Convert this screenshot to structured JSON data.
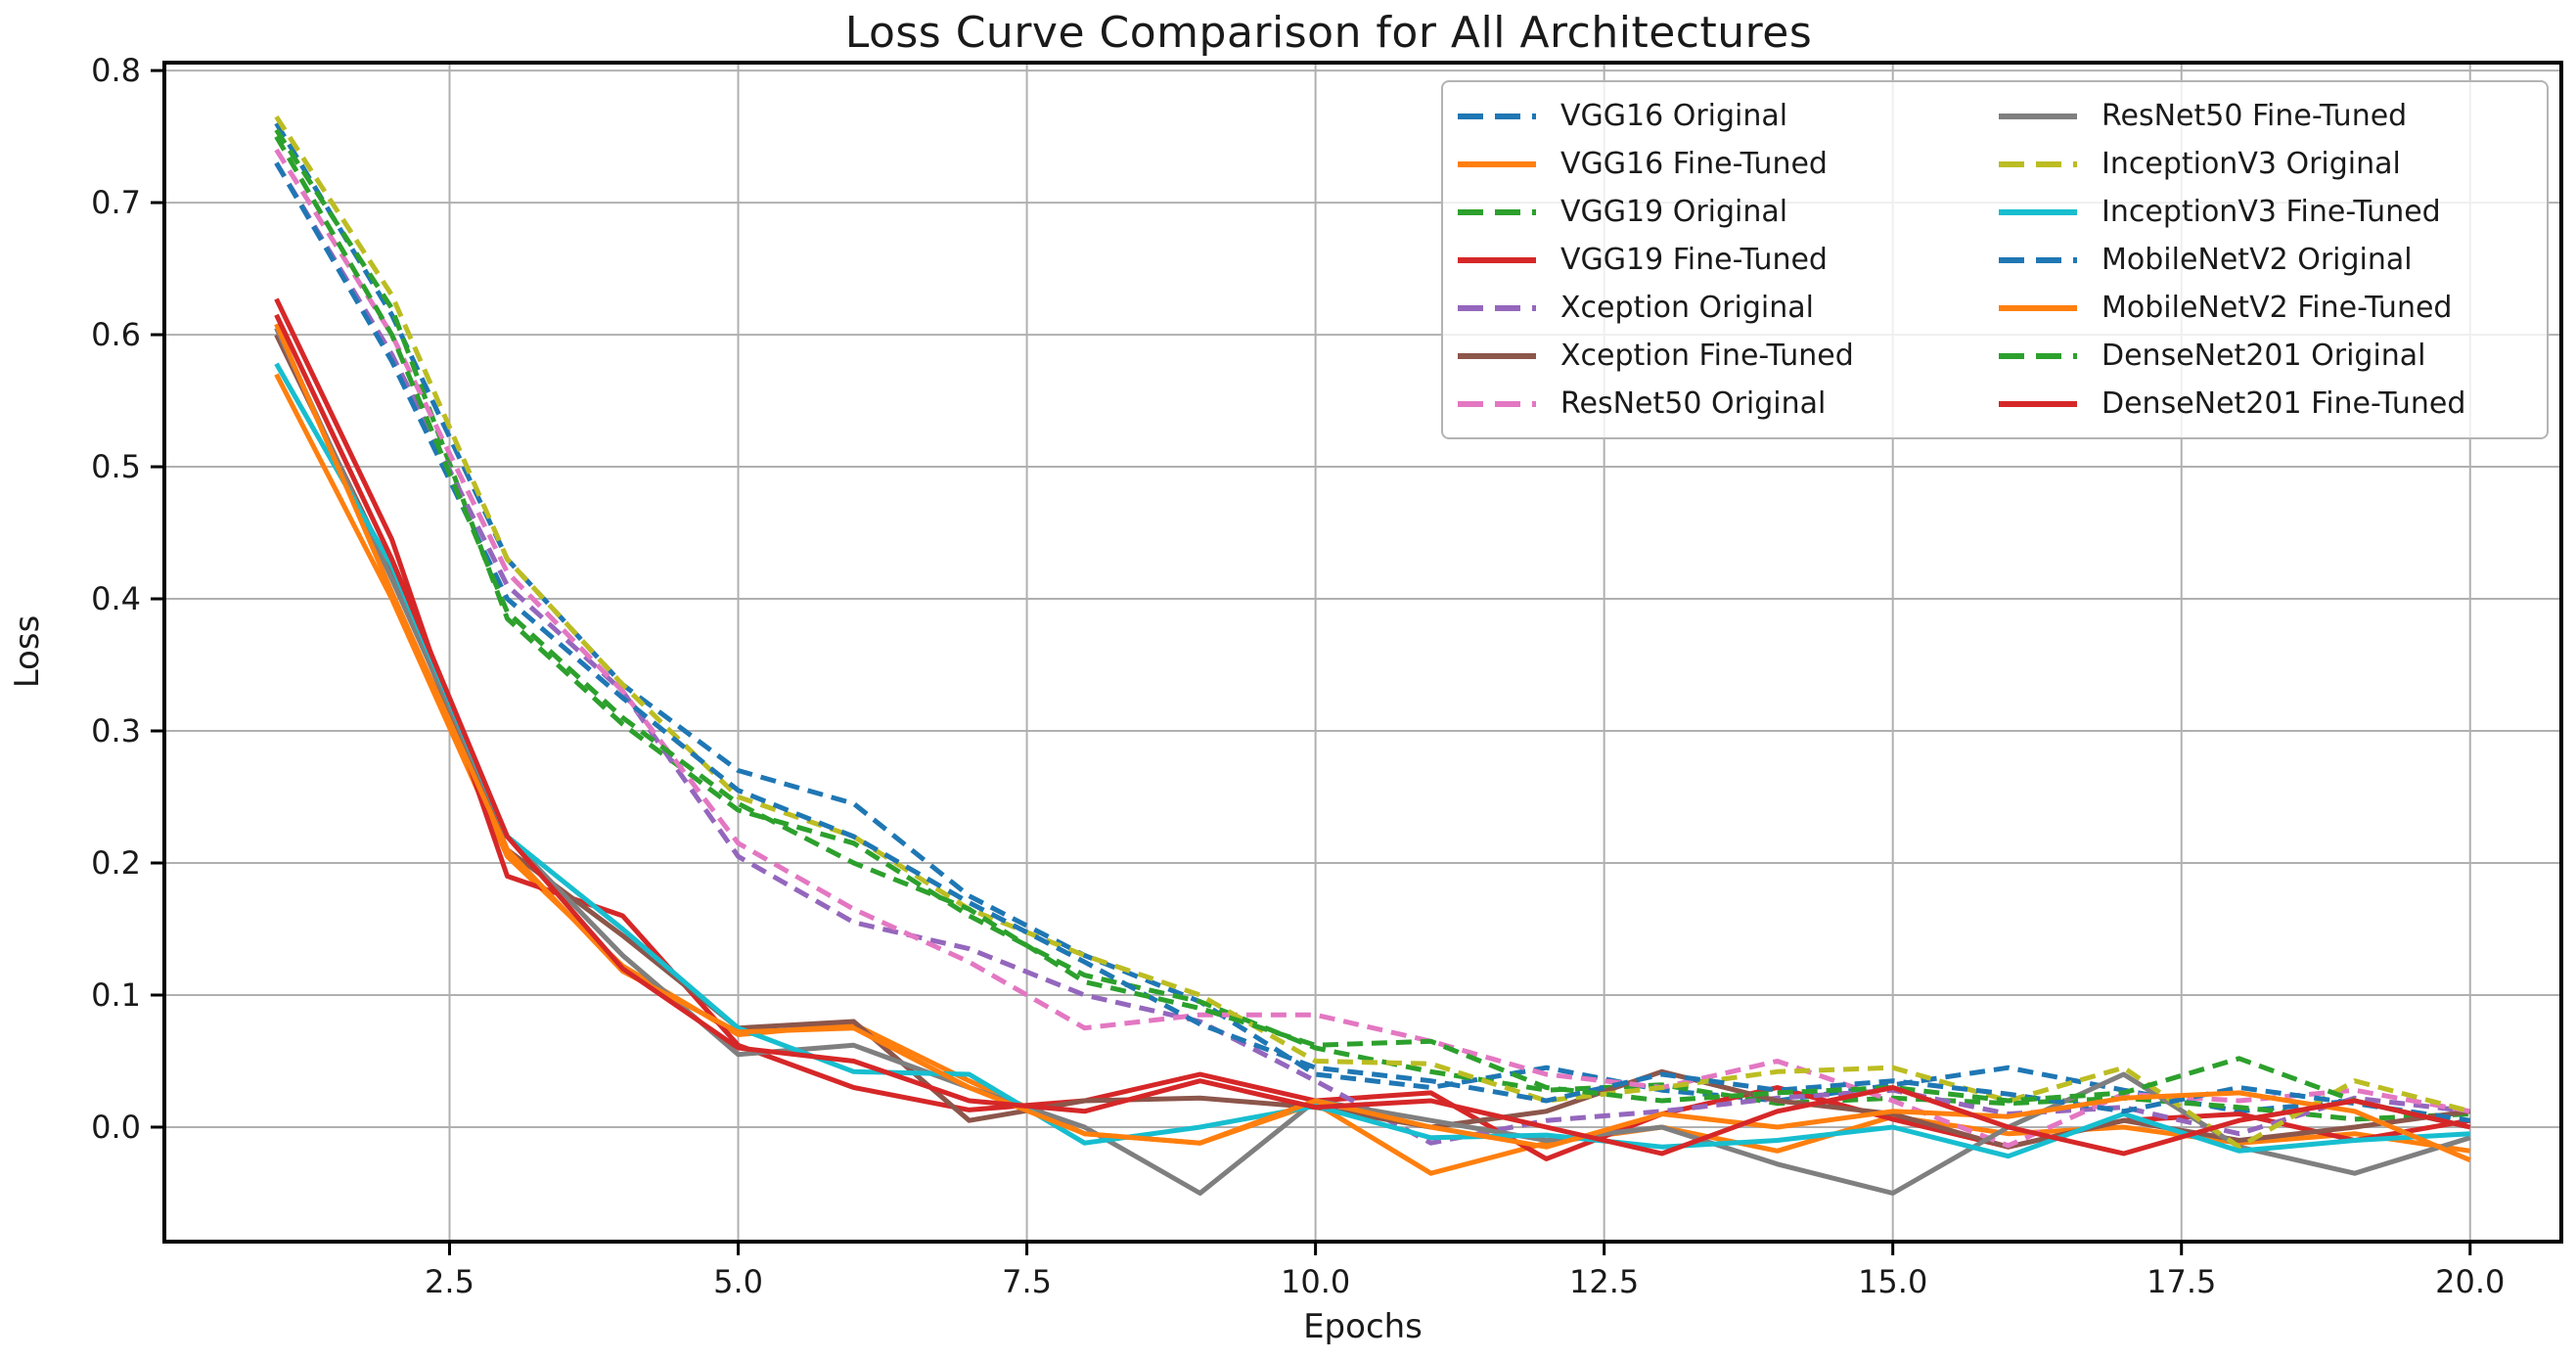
{
  "chart_data": {
    "type": "line",
    "title": "Loss Curve Comparison for All Architectures",
    "xlabel": "Epochs",
    "ylabel": "Loss",
    "x": [
      1,
      2,
      3,
      4,
      5,
      6,
      7,
      8,
      9,
      10,
      11,
      12,
      13,
      14,
      15,
      16,
      17,
      18,
      19,
      20
    ],
    "xlim": [
      0.03,
      20.79
    ],
    "ylim": [
      -0.0867,
      0.806
    ],
    "xticks": [
      "2.5",
      "5.0",
      "7.5",
      "10.0",
      "12.5",
      "15.0",
      "17.5",
      "20.0"
    ],
    "xtick_values": [
      2.5,
      5.0,
      7.5,
      10.0,
      12.5,
      15.0,
      17.5,
      20.0
    ],
    "yticks": [
      "0.0",
      "0.1",
      "0.2",
      "0.3",
      "0.4",
      "0.5",
      "0.6",
      "0.7",
      "0.8"
    ],
    "ytick_values": [
      0.0,
      0.1,
      0.2,
      0.3,
      0.4,
      0.5,
      0.6,
      0.7,
      0.8
    ],
    "grid": true,
    "legend_position": "upper right",
    "legend_columns": 2,
    "colors": {
      "grid": "#b0b0b0",
      "spine": "#000000",
      "text": "#1a1a1a",
      "legend_border": "#b4b4b4"
    },
    "series": [
      {
        "name": "VGG16 Original",
        "color": "#1f77b4",
        "style": "dashed",
        "values": [
          0.76,
          0.615,
          0.43,
          0.335,
          0.27,
          0.245,
          0.175,
          0.13,
          0.095,
          0.04,
          0.03,
          0.045,
          0.028,
          0.02,
          0.032,
          0.045,
          0.028,
          0.012,
          0.02,
          0.0
        ]
      },
      {
        "name": "VGG16 Fine-Tuned",
        "color": "#ff7f0e",
        "style": "solid",
        "values": [
          0.57,
          0.4,
          0.205,
          0.122,
          0.07,
          0.078,
          0.035,
          -0.005,
          -0.012,
          0.018,
          -0.035,
          -0.012,
          0.0,
          -0.018,
          0.008,
          -0.005,
          0.0,
          -0.012,
          -0.005,
          -0.018
        ]
      },
      {
        "name": "VGG19 Original",
        "color": "#2ca02c",
        "style": "dashed",
        "values": [
          0.755,
          0.62,
          0.385,
          0.305,
          0.24,
          0.215,
          0.16,
          0.115,
          0.095,
          0.06,
          0.042,
          0.028,
          0.032,
          0.018,
          0.022,
          0.018,
          0.022,
          0.015,
          0.006,
          0.01
        ]
      },
      {
        "name": "VGG19 Fine-Tuned",
        "color": "#d62728",
        "style": "solid",
        "values": [
          0.627,
          0.445,
          0.19,
          0.16,
          0.062,
          0.03,
          0.013,
          0.02,
          0.04,
          0.02,
          0.026,
          -0.024,
          0.01,
          0.03,
          0.006,
          -0.015,
          0.005,
          0.01,
          -0.01,
          0.005
        ]
      },
      {
        "name": "Xception Original",
        "color": "#9467bd",
        "style": "dashed",
        "values": [
          0.73,
          0.585,
          0.41,
          0.33,
          0.205,
          0.155,
          0.135,
          0.1,
          0.08,
          0.035,
          -0.012,
          0.005,
          0.012,
          0.022,
          0.028,
          0.01,
          0.015,
          -0.005,
          0.022,
          0.012
        ]
      },
      {
        "name": "Xception Fine-Tuned",
        "color": "#8c564b",
        "style": "solid",
        "values": [
          0.6,
          0.42,
          0.21,
          0.145,
          0.075,
          0.08,
          0.005,
          0.02,
          0.022,
          0.015,
          0.0,
          0.012,
          0.042,
          0.02,
          0.01,
          -0.015,
          0.005,
          -0.01,
          0.0,
          0.012
        ]
      },
      {
        "name": "ResNet50 Original",
        "color": "#e377c2",
        "style": "dashed",
        "values": [
          0.74,
          0.6,
          0.42,
          0.33,
          0.215,
          0.165,
          0.125,
          0.075,
          0.085,
          0.085,
          0.065,
          0.04,
          0.03,
          0.05,
          0.02,
          -0.014,
          0.025,
          0.02,
          0.028,
          0.012
        ]
      },
      {
        "name": "ResNet50 Fine-Tuned",
        "color": "#7f7f7f",
        "style": "solid",
        "values": [
          0.605,
          0.415,
          0.22,
          0.13,
          0.055,
          0.062,
          0.03,
          0.0,
          -0.05,
          0.02,
          0.005,
          -0.01,
          0.0,
          -0.028,
          -0.05,
          0.0,
          0.04,
          -0.015,
          -0.035,
          -0.008
        ]
      },
      {
        "name": "InceptionV3 Original",
        "color": "#bcbd22",
        "style": "dashed",
        "values": [
          0.765,
          0.63,
          0.43,
          0.335,
          0.25,
          0.22,
          0.165,
          0.13,
          0.1,
          0.05,
          0.048,
          0.02,
          0.03,
          0.042,
          0.045,
          0.02,
          0.045,
          -0.015,
          0.035,
          0.012
        ]
      },
      {
        "name": "InceptionV3 Fine-Tuned",
        "color": "#17becf",
        "style": "solid",
        "values": [
          0.578,
          0.425,
          0.22,
          0.15,
          0.075,
          0.042,
          0.04,
          -0.012,
          0.0,
          0.016,
          -0.008,
          -0.006,
          -0.015,
          -0.01,
          0.0,
          -0.022,
          0.01,
          -0.018,
          -0.01,
          -0.005
        ]
      },
      {
        "name": "MobileNetV2 Original",
        "color": "#1f77b4",
        "style": "dashed",
        "values": [
          0.73,
          0.58,
          0.4,
          0.325,
          0.255,
          0.22,
          0.17,
          0.125,
          0.078,
          0.045,
          0.035,
          0.02,
          0.04,
          0.028,
          0.035,
          0.025,
          0.012,
          0.03,
          0.018,
          0.005
        ]
      },
      {
        "name": "MobileNetV2 Fine-Tuned",
        "color": "#ff7f0e",
        "style": "solid",
        "values": [
          0.608,
          0.405,
          0.21,
          0.118,
          0.072,
          0.075,
          0.03,
          -0.005,
          -0.012,
          0.02,
          0.0,
          -0.015,
          0.01,
          0.0,
          0.012,
          0.008,
          0.022,
          0.026,
          0.012,
          -0.025
        ]
      },
      {
        "name": "DenseNet201 Original",
        "color": "#2ca02c",
        "style": "dashed",
        "values": [
          0.75,
          0.6,
          0.39,
          0.31,
          0.245,
          0.2,
          0.165,
          0.11,
          0.09,
          0.062,
          0.065,
          0.03,
          0.02,
          0.026,
          0.03,
          0.02,
          0.026,
          0.052,
          0.02,
          0.0
        ]
      },
      {
        "name": "DenseNet201 Fine-Tuned",
        "color": "#d62728",
        "style": "solid",
        "values": [
          0.615,
          0.43,
          0.22,
          0.12,
          0.06,
          0.05,
          0.02,
          0.012,
          0.035,
          0.015,
          0.02,
          0.0,
          -0.02,
          0.012,
          0.03,
          0.0,
          -0.02,
          0.005,
          0.02,
          0.0
        ]
      }
    ]
  }
}
